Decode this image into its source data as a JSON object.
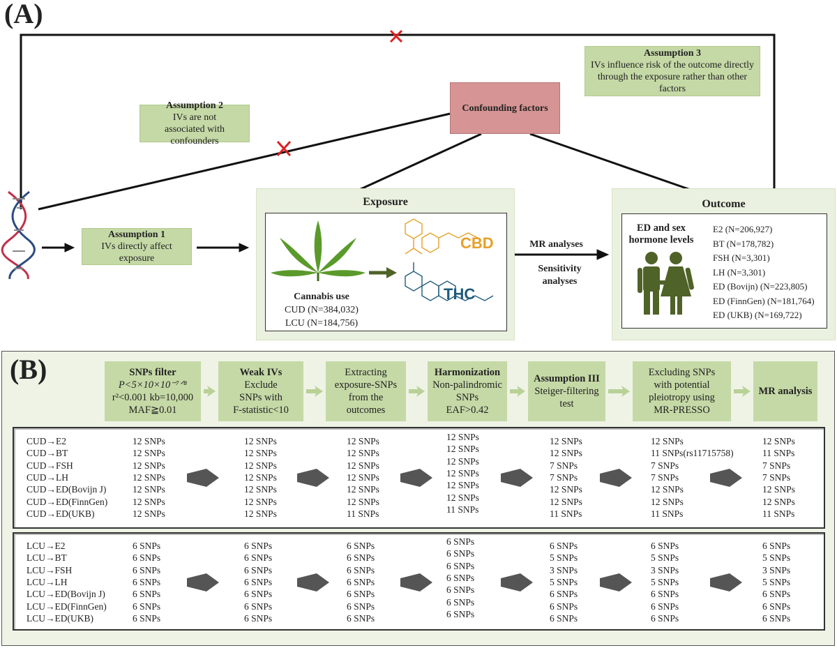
{
  "panelA": {
    "label": "(A)",
    "assumption1": {
      "title": "Assumption 1",
      "text": "IVs directly affect exposure"
    },
    "assumption2": {
      "title": "Assumption 2",
      "text": "IVs are not associated with confounders"
    },
    "assumption3": {
      "title": "Assumption 3",
      "text": "IVs influence risk of the outcome directly through the exposure  rather than other factors"
    },
    "confounding": "Confounding factors",
    "exposure": {
      "title": "Exposure",
      "subtitle": "Cannabis use",
      "items": [
        "CUD (N=384,032)",
        "LCU (N=184,756)"
      ],
      "molecules": [
        "CBD",
        "THC"
      ]
    },
    "mr_label": "MR analyses",
    "sens_label": "Sensitivity analyses",
    "outcome": {
      "title": "Outcome",
      "subtitle": "ED and sex hormone levels",
      "items": [
        "E2 (N=206,927)",
        "BT (N=178,782)",
        "FSH (N=3,301)",
        "LH (N=3,301)",
        "ED (Bovijn) (N=223,805)",
        "ED (FinnGen) (N=181,764)",
        "ED (UKB) (N=169,722)"
      ]
    },
    "colors": {
      "green_box": "#c5d9a6",
      "panel": "#eaf1e0",
      "confounding": "#d69494",
      "cross": "#e02020",
      "cbd": "#e5a02a",
      "thc": "#1f5a7a",
      "people": "#4f6228"
    }
  },
  "panelB": {
    "label": "(B)",
    "steps": [
      {
        "title": "SNPs filter",
        "lines": [
          "P<5×10×10⁻⁷ᐟ⁸",
          "r²<0.001 kb=10,000",
          "MAF≧0.01"
        ]
      },
      {
        "title": "Weak IVs",
        "lines": [
          "Exclude",
          "SNPs with",
          "F-statistic<10"
        ]
      },
      {
        "title": "",
        "lines": [
          "Extracting",
          "exposure-SNPs",
          "from the",
          "outcomes"
        ]
      },
      {
        "title": "Harmonization",
        "lines": [
          "Non-palindromic",
          "SNPs",
          "EAF>0.42"
        ]
      },
      {
        "title": "Assumption III",
        "lines": [
          "Steiger-filtering",
          "test"
        ]
      },
      {
        "title": "",
        "lines": [
          "Excluding SNPs",
          "with potential",
          "pleiotropy using",
          "MR-PRESSO"
        ]
      },
      {
        "title": "MR analysis",
        "lines": []
      }
    ],
    "cud": {
      "labels": [
        "CUD→E2",
        "CUD→BT",
        "CUD→FSH",
        "CUD→LH",
        "CUD→ED(Bovijn J)",
        "CUD→ED(FinnGen)",
        "CUD→ED(UKB)"
      ],
      "columns": [
        [
          "12 SNPs",
          "12 SNPs",
          "12 SNPs",
          "12 SNPs",
          "12 SNPs",
          "12 SNPs",
          "12 SNPs"
        ],
        [
          "12 SNPs",
          "12 SNPs",
          "12 SNPs",
          "12 SNPs",
          "12 SNPs",
          "12 SNPs",
          "12 SNPs"
        ],
        [
          "12 SNPs",
          "12 SNPs",
          "12 SNPs",
          "12 SNPs",
          "12 SNPs",
          "12 SNPs",
          "11 SNPs"
        ],
        [
          "12 SNPs",
          "12 SNPs",
          "12 SNPs",
          "12 SNPs",
          "12 SNPs",
          "12 SNPs",
          "11 SNPs"
        ],
        [
          "12 SNPs",
          "12 SNPs",
          "7 SNPs",
          "7 SNPs",
          "12 SNPs",
          "12 SNPs",
          "11 SNPs"
        ],
        [
          "12 SNPs",
          "11 SNPs(rs11715758)",
          "7 SNPs",
          "7 SNPs",
          "12 SNPs",
          "12 SNPs",
          "11 SNPs"
        ],
        [
          "12 SNPs",
          "11 SNPs",
          "7 SNPs",
          "7 SNPs",
          "12 SNPs",
          "12 SNPs",
          "11 SNPs"
        ]
      ]
    },
    "lcu": {
      "labels": [
        "LCU→E2",
        "LCU→BT",
        "LCU→FSH",
        "LCU→LH",
        "LCU→ED(Bovijn J)",
        "LCU→ED(FinnGen)",
        "LCU→ED(UKB)"
      ],
      "columns": [
        [
          "6 SNPs",
          "6 SNPs",
          "6 SNPs",
          "6 SNPs",
          "6 SNPs",
          "6 SNPs",
          "6 SNPs"
        ],
        [
          "6 SNPs",
          "6 SNPs",
          "6 SNPs",
          "6 SNPs",
          "6 SNPs",
          "6 SNPs",
          "6 SNPs"
        ],
        [
          "6 SNPs",
          "6 SNPs",
          "6 SNPs",
          "6 SNPs",
          "6 SNPs",
          "6 SNPs",
          "6 SNPs"
        ],
        [
          "6 SNPs",
          "6 SNPs",
          "6 SNPs",
          "6 SNPs",
          "6 SNPs",
          "6 SNPs",
          "6 SNPs"
        ],
        [
          "6 SNPs",
          "5 SNPs",
          "3 SNPs",
          "5 SNPs",
          "6 SNPs",
          "6 SNPs",
          "6 SNPs"
        ],
        [
          "6 SNPs",
          "5 SNPs",
          "3 SNPs",
          "5 SNPs",
          "6 SNPs",
          "6 SNPs",
          "6 SNPs"
        ],
        [
          "6 SNPs",
          "5 SNPs",
          "3 SNPs",
          "5 SNPs",
          "6 SNPs",
          "6 SNPs",
          "6 SNPs"
        ]
      ]
    }
  }
}
